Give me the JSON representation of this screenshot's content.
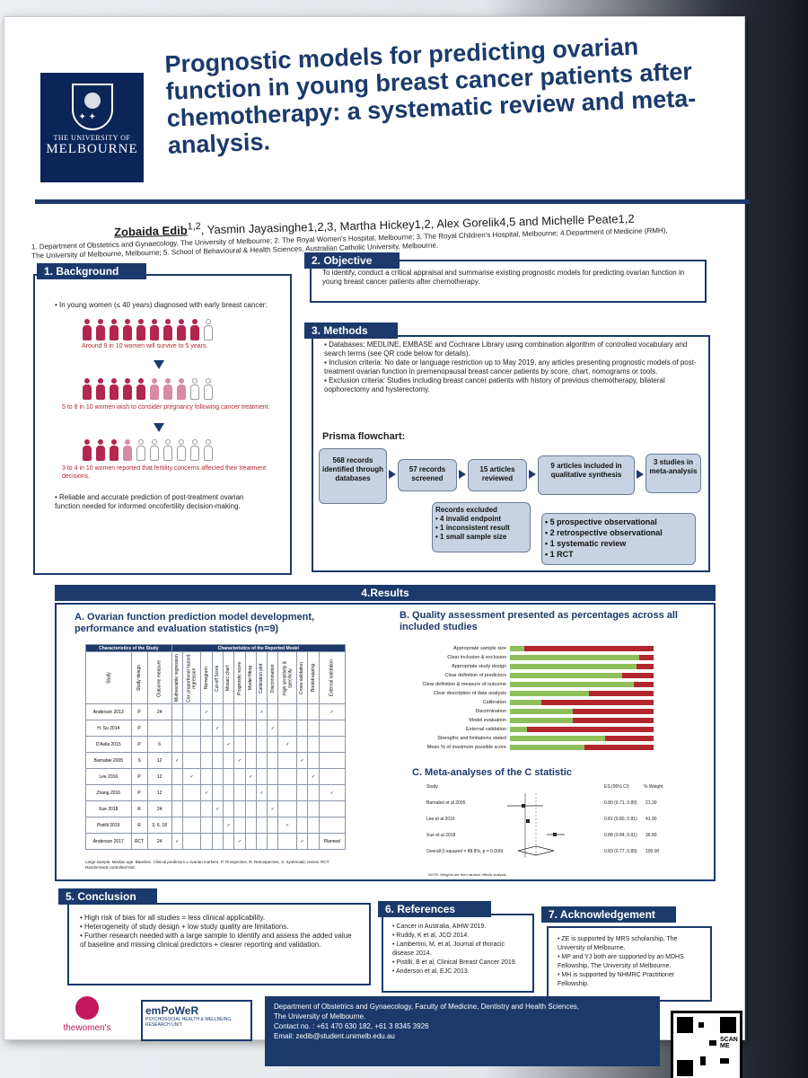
{
  "header": {
    "logo_line1": "THE UNIVERSITY OF",
    "logo_line2": "MELBOURNE",
    "title": "Prognostic models for predicting ovarian function in young breast cancer patients after chemotherapy: a systematic review and meta-analysis.",
    "authors_lead": "Zobaida Edib",
    "authors_lead_sup": "1,2",
    "authors_rest": ", Yasmin Jayasinghe1,2,3, Martha Hickey1,2, Alex Gorelik4,5 and Michelle Peate1,2",
    "affiliations": "1. Department of Obstetrics and Gynaecology, The University of Melbourne; 2. The Royal Women's Hospital, Melbourne; 3. The Royal Children's Hospital, Melbourne; 4.Department of Medicine (RMH), The University of Melbourne, Melbourne; 5. School of Behavioural & Health Sciences, Australian Catholic University, Melbourne."
  },
  "background": {
    "heading": "1. Background",
    "intro": "In young women (≤ 40 years) diagnosed with early breast cancer:",
    "stat1": "Around 9 in 10 women will survive to 5 years.",
    "stat2": "5 to 8 in 10 women wish to consider pregnancy following cancer treatment.",
    "stat3": "3 to 4 in 10 women reported that fertility concerns affected their treatment decisions.",
    "conclusion": "Reliable and accurate prediction of post-treatment ovarian function needed for informed oncofertility decision-making."
  },
  "objective": {
    "heading": "2. Objective",
    "text": "To identify, conduct a critical appraisal and summarise existing prognostic models for predicting ovarian function in young breast cancer patients after chemotherapy."
  },
  "methods": {
    "heading": "3. Methods",
    "bullets": [
      "Databases: MEDLINE, EMBASE and Cochrane Library using combination algorithm of controlled vocabulary and search terms (see QR code below for details).",
      "Inclusion criteria: No date or language restriction up to May 2019, any articles presenting prognostic models of post-treatment ovarian function in premenopausal breast cancer patients by score, chart, nomograms or tools.",
      "Exclusion criteria: Studies including breast cancer patients with history of previous chemotherapy, bilateral oophorectomy and hysterectomy."
    ],
    "prisma_label": "Prisma flowchart:",
    "flow": {
      "b1": "568 records identified through databases",
      "b2": "57 records screened",
      "b3": "15 articles reviewed",
      "b4": "9 articles included in qualitative synthesis",
      "b5": "3 studies in meta-analysis",
      "excluded_title": "Records excluded",
      "excluded_items": [
        "4 invalid endpoint",
        "1 inconsistent result",
        "1 small sample size"
      ],
      "types": [
        "5 prospective observational",
        "2 retrospective observational",
        "1 systematic review",
        "1 RCT"
      ]
    }
  },
  "results": {
    "heading": "4.Results",
    "a_title": "A. Ovarian function prediction model development, performance and evaluation statistics (n=9)",
    "table_groups": [
      "Characteristics of the Study",
      "Characteristics of the Reported Model"
    ],
    "table_subgroups": [
      "Modelling method",
      "Model presentation",
      "Performance",
      "Evaluation"
    ],
    "table_columns": [
      "Study",
      "Study design",
      "Outcome measure",
      "Multivariable regression",
      "Cox proportional hazard regression",
      "Nomogram",
      "Cut-off Score",
      "Mosaic chart",
      "Prognostic score",
      "Model fitting",
      "Calibration plot",
      "Discrimination",
      "High sensitivity & specificity",
      "Cross-validation",
      "Bootstrapping",
      "External validation"
    ],
    "table_rows": [
      {
        "study": "Anderson 2013",
        "design": "P",
        "outcome": "24"
      },
      {
        "study": "H. Su 2014",
        "design": "P",
        "outcome": ""
      },
      {
        "study": "D'Avila 2015",
        "design": "P",
        "outcome": "6"
      },
      {
        "study": "Barnabei 2005",
        "design": "S",
        "outcome": "12"
      },
      {
        "study": "Lee 2016",
        "design": "P",
        "outcome": "12"
      },
      {
        "study": "Zhang 2016",
        "design": "P",
        "outcome": "12"
      },
      {
        "study": "Xue 2018",
        "design": "R",
        "outcome": "24"
      },
      {
        "study": "Pistilli 2019",
        "design": "R",
        "outcome": "3, 6, 18"
      },
      {
        "study": "Anderson 2017",
        "design": "RCT",
        "outcome": "24"
      }
    ],
    "table_planned": "Planned",
    "table_note": "Large sample. Median age. Baseline. Clinical predictors ± ovarian markers. P: Prospective, R: Retrospective, S: Systematic review. RCT: Randomised controlled trial.",
    "b_title": "B. Quality assessment presented as percentages across all included studies",
    "quality": [
      {
        "label": "Appropriate sample size",
        "green": 10
      },
      {
        "label": "Clear inclusion & exclusion",
        "green": 90
      },
      {
        "label": "Appropriate study design",
        "green": 88
      },
      {
        "label": "Clear definition of predictors",
        "green": 78
      },
      {
        "label": "Clear definition & measure of outcome",
        "green": 86
      },
      {
        "label": "Clear description of data analysis",
        "green": 55
      },
      {
        "label": "Calibration",
        "green": 22
      },
      {
        "label": "Discrimination",
        "green": 44
      },
      {
        "label": "Model evaluation",
        "green": 44
      },
      {
        "label": "External validation",
        "green": 12
      },
      {
        "label": "Strengths and limitations stated",
        "green": 66
      },
      {
        "label": "Mean % of maximum possible score",
        "green": 52
      }
    ],
    "c_title": "C. Meta-analyses of the C statistic",
    "forest_header_study": "Study",
    "forest_header_es": "ES (95% CI)",
    "forest_header_w": "% Weight",
    "forest": [
      {
        "study": "Barnabei et al 2005",
        "es": "0.80 (0.71, 0.89)",
        "w": "21.30"
      },
      {
        "study": "Lee et al 2016",
        "es": "0.81 (0.80, 0.81)",
        "w": "41.90"
      },
      {
        "study": "Xue et al 2018",
        "es": "0.88 (0.84, 0.91)",
        "w": "36.80"
      },
      {
        "study": "Overall (I-squared = 88.8%, p = 0.000)",
        "es": "0.83 (0.77, 0.89)",
        "w": "100.00"
      }
    ],
    "forest_note": "NOTE: Weights are from random effects analysis"
  },
  "conclusion": {
    "heading": "5. Conclusion",
    "bullets": [
      "High risk of bias for all studies = less clinical applicability.",
      "Heterogeneity of study design + low study quality are limitations.",
      "Further research needed with a large sample to identify and assess the added value of baseline and missing clinical predictors + clearer reporting and validation."
    ]
  },
  "references": {
    "heading": "6. References",
    "items": [
      "Cancer in Australia, AIHW 2019.",
      "Ruddy, K et al, JCO 2014.",
      "Lambertini, M, et al, Journal of thoracic disease 2014.",
      "Pistilli, B et al, Clinical Breast Cancer 2019.",
      "Anderson et al, EJC 2013."
    ]
  },
  "acknowledgement": {
    "heading": "7. Acknowledgement",
    "items": [
      "ZE is supported by MRS scholarship, The University of Melbourne.",
      "MP and YJ both are supported by an MDHS Fellowship, The University of Melbourne.",
      "MH is supported by NHMRC Practitioner Fellowship."
    ]
  },
  "footer": {
    "womens": "thewomen's",
    "empower": "emPoWeR",
    "empower_sub": "PSYCHOSOCIAL HEALTH & WELLBEING RESEARCH UNIT",
    "dept": "Department of Obstetrics and Gynaecology, Faculty of Medicine, Dentistry and Health Sciences,",
    "uni": "The University of Melbourne.",
    "contact": "Contact no. : +61 470 630 182, +61 3 8345 3926",
    "email": "Email: zedib@student.unimelb.edu.au",
    "qr_label": "SCAN ME"
  },
  "colors": {
    "navy": "#1b3a6b",
    "red": "#b3262e",
    "green": "#8fbf5a",
    "pink": "#b3264f"
  }
}
